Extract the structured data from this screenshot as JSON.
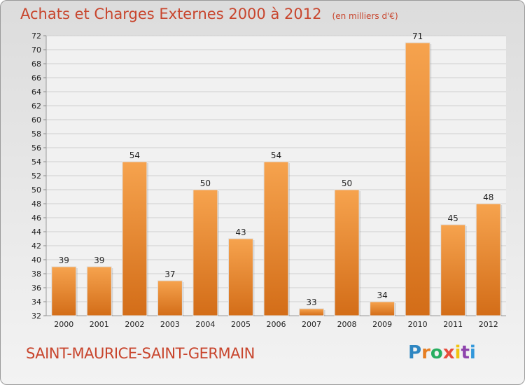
{
  "header": {
    "title": "Achats et Charges Externes 2000 à 2012",
    "unit": "(en milliers d'€)"
  },
  "footer": {
    "commune": "SAINT-MAURICE-SAINT-GERMAIN",
    "brand_letters": [
      {
        "char": "P",
        "color": "#2e86c1"
      },
      {
        "char": "r",
        "color": "#e67e22"
      },
      {
        "char": "o",
        "color": "#27ae60"
      },
      {
        "char": "x",
        "color": "#e74c3c"
      },
      {
        "char": "i",
        "color": "#f1c40f"
      },
      {
        "char": "t",
        "color": "#8e44ad"
      },
      {
        "char": "i",
        "color": "#3498db"
      }
    ]
  },
  "colors": {
    "bar_light": "#f6a34e",
    "bar_dark": "#d36d18",
    "grid": "#cfcfcf",
    "axis_text": "#222222"
  },
  "chart_data": {
    "type": "bar",
    "categories": [
      "2000",
      "2001",
      "2002",
      "2003",
      "2004",
      "2005",
      "2006",
      "2007",
      "2008",
      "2009",
      "2010",
      "2011",
      "2012"
    ],
    "values": [
      39,
      39,
      54,
      37,
      50,
      43,
      54,
      33,
      50,
      34,
      71,
      45,
      48
    ],
    "ylim": [
      32,
      72
    ],
    "yticks": [
      32,
      34,
      36,
      38,
      40,
      42,
      44,
      46,
      48,
      50,
      52,
      54,
      56,
      58,
      60,
      62,
      64,
      66,
      68,
      70,
      72
    ],
    "grid": true,
    "legend": "none"
  }
}
